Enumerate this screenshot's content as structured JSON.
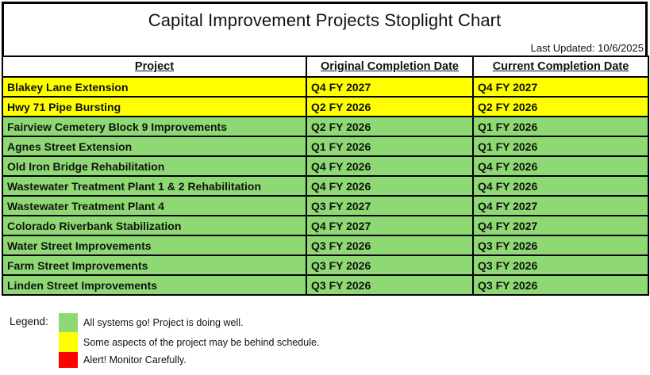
{
  "header": {
    "title": "Capital Improvement Projects Stoplight Chart",
    "last_updated": "Last Updated: 10/6/2025"
  },
  "colors": {
    "green": "#8ED973",
    "yellow": "#FFFF00",
    "red": "#FF0000",
    "border": "#000000"
  },
  "table": {
    "columns": [
      "Project",
      "Original Completion Date",
      "Current Completion Date"
    ],
    "rows": [
      {
        "project": "Blakey Lane Extension",
        "original": "Q4 FY 2027",
        "current": "Q4 FY 2027",
        "status": "yellow"
      },
      {
        "project": "Hwy 71 Pipe Bursting",
        "original": "Q2 FY 2026",
        "current": "Q2 FY 2026",
        "status": "yellow"
      },
      {
        "project": "Fairview Cemetery Block 9 Improvements",
        "original": "Q2 FY 2026",
        "current": "Q1 FY 2026",
        "status": "green"
      },
      {
        "project": "Agnes Street Extension",
        "original": "Q1 FY 2026",
        "current": "Q1 FY 2026",
        "status": "green"
      },
      {
        "project": "Old Iron Bridge Rehabilitation",
        "original": "Q4 FY 2026",
        "current": "Q4 FY 2026",
        "status": "green"
      },
      {
        "project": "Wastewater Treatment Plant 1 & 2 Rehabilitation",
        "original": "Q4 FY 2026",
        "current": "Q4 FY 2026",
        "status": "green"
      },
      {
        "project": "Wastewater Treatment Plant 4",
        "original": "Q3 FY 2027",
        "current": "Q4 FY 2027",
        "status": "green"
      },
      {
        "project": "Colorado Riverbank Stabilization",
        "original": "Q4 FY 2027",
        "current": "Q4 FY 2027",
        "status": "green"
      },
      {
        "project": "Water Street Improvements",
        "original": "Q3 FY 2026",
        "current": "Q3 FY 2026",
        "status": "green"
      },
      {
        "project": "Farm Street Improvements",
        "original": "Q3 FY 2026",
        "current": "Q3 FY 2026",
        "status": "green"
      },
      {
        "project": "Linden Street Improvements",
        "original": "Q3 FY 2026",
        "current": "Q3 FY 2026",
        "status": "green"
      }
    ]
  },
  "legend": {
    "label": "Legend:",
    "items": [
      {
        "status": "green",
        "text": "All systems go! Project is doing well."
      },
      {
        "status": "yellow",
        "text": "Some aspects of the project may be behind schedule."
      },
      {
        "status": "red",
        "text": "Alert! Monitor Carefully."
      }
    ]
  }
}
